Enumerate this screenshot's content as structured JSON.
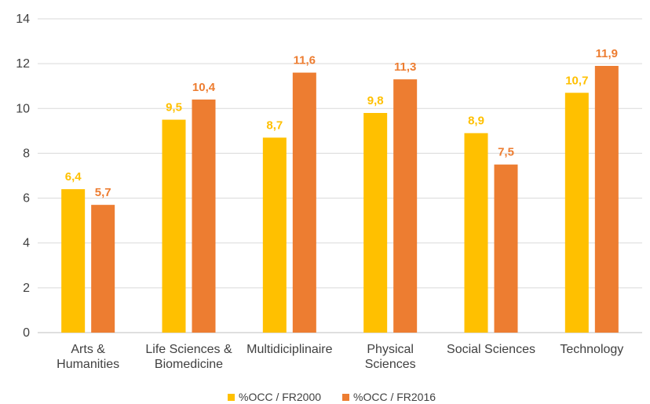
{
  "chart_data": {
    "type": "bar",
    "categories": [
      [
        "Arts &",
        "Humanities"
      ],
      [
        "Life Sciences &",
        "Biomedicine"
      ],
      [
        "Multidiciplinaire"
      ],
      [
        "Physical",
        "Sciences"
      ],
      [
        "Social Sciences"
      ],
      [
        "Technology"
      ]
    ],
    "series": [
      {
        "name": "%OCC / FR2000",
        "color": "#FFC000",
        "values": [
          6.4,
          9.5,
          8.7,
          9.8,
          8.9,
          10.7
        ],
        "labels": [
          "6,4",
          "9,5",
          "8,7",
          "9,8",
          "8,9",
          "10,7"
        ]
      },
      {
        "name": "%OCC / FR2016",
        "color": "#ED7D31",
        "values": [
          5.7,
          10.4,
          11.6,
          11.3,
          7.5,
          11.9
        ],
        "labels": [
          "5,7",
          "10,4",
          "11,6",
          "11,3",
          "7,5",
          "11,9"
        ]
      }
    ],
    "ylim": [
      0,
      14
    ],
    "yticks": [
      0,
      2,
      4,
      6,
      8,
      10,
      12,
      14
    ],
    "grid": true,
    "legend_position": "bottom"
  }
}
